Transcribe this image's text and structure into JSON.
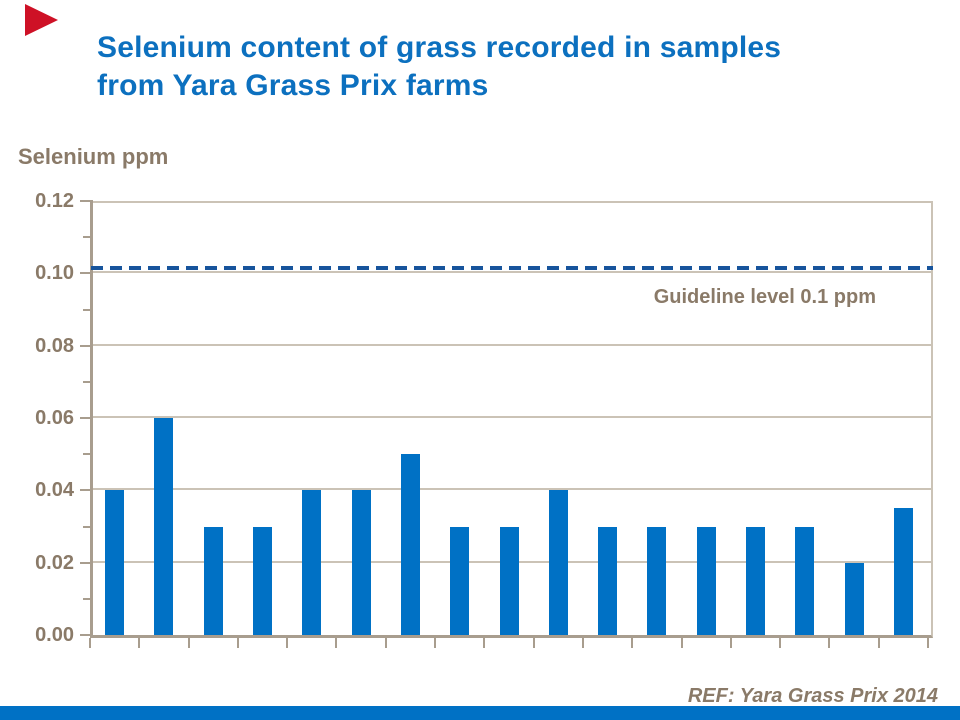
{
  "slide": {
    "title_line1": "Selenium content of grass recorded in samples",
    "title_line2": "from Yara Grass Prix farms",
    "reference": "REF: Yara Grass Prix 2014"
  },
  "chart_data": {
    "type": "bar",
    "title": "Selenium content of grass recorded in samples from Yara Grass Prix farms",
    "xlabel": "",
    "ylabel": "Selenium ppm",
    "x_axis": {
      "labels_visible": false,
      "num_samples": 17
    },
    "values": [
      0.04,
      0.06,
      0.03,
      0.03,
      0.04,
      0.04,
      0.05,
      0.03,
      0.03,
      0.04,
      0.03,
      0.03,
      0.03,
      0.03,
      0.03,
      0.02,
      0.035
    ],
    "ylim": [
      0,
      0.12
    ],
    "ytick_step": 0.02,
    "ytick_labels": [
      "0.00",
      "0.02",
      "0.04",
      "0.06",
      "0.08",
      "0.10",
      "0.12"
    ],
    "minor_tick_step": 0.01,
    "grid": true,
    "legend": "none",
    "guideline": {
      "value": 0.1,
      "label": "Guideline level 0.1 ppm",
      "style": "dashed"
    },
    "reference": "REF: Yara Grass Prix 2014"
  },
  "colors": {
    "title": "#0C70BF",
    "bar": "#0071C5",
    "guideline": "#17549C",
    "label_text": "#8A7A68",
    "axis": "#A89D8E",
    "grid": "#CBC3B6",
    "corner_triangle": "#CE1126",
    "footer_bar": "#0071C5"
  }
}
